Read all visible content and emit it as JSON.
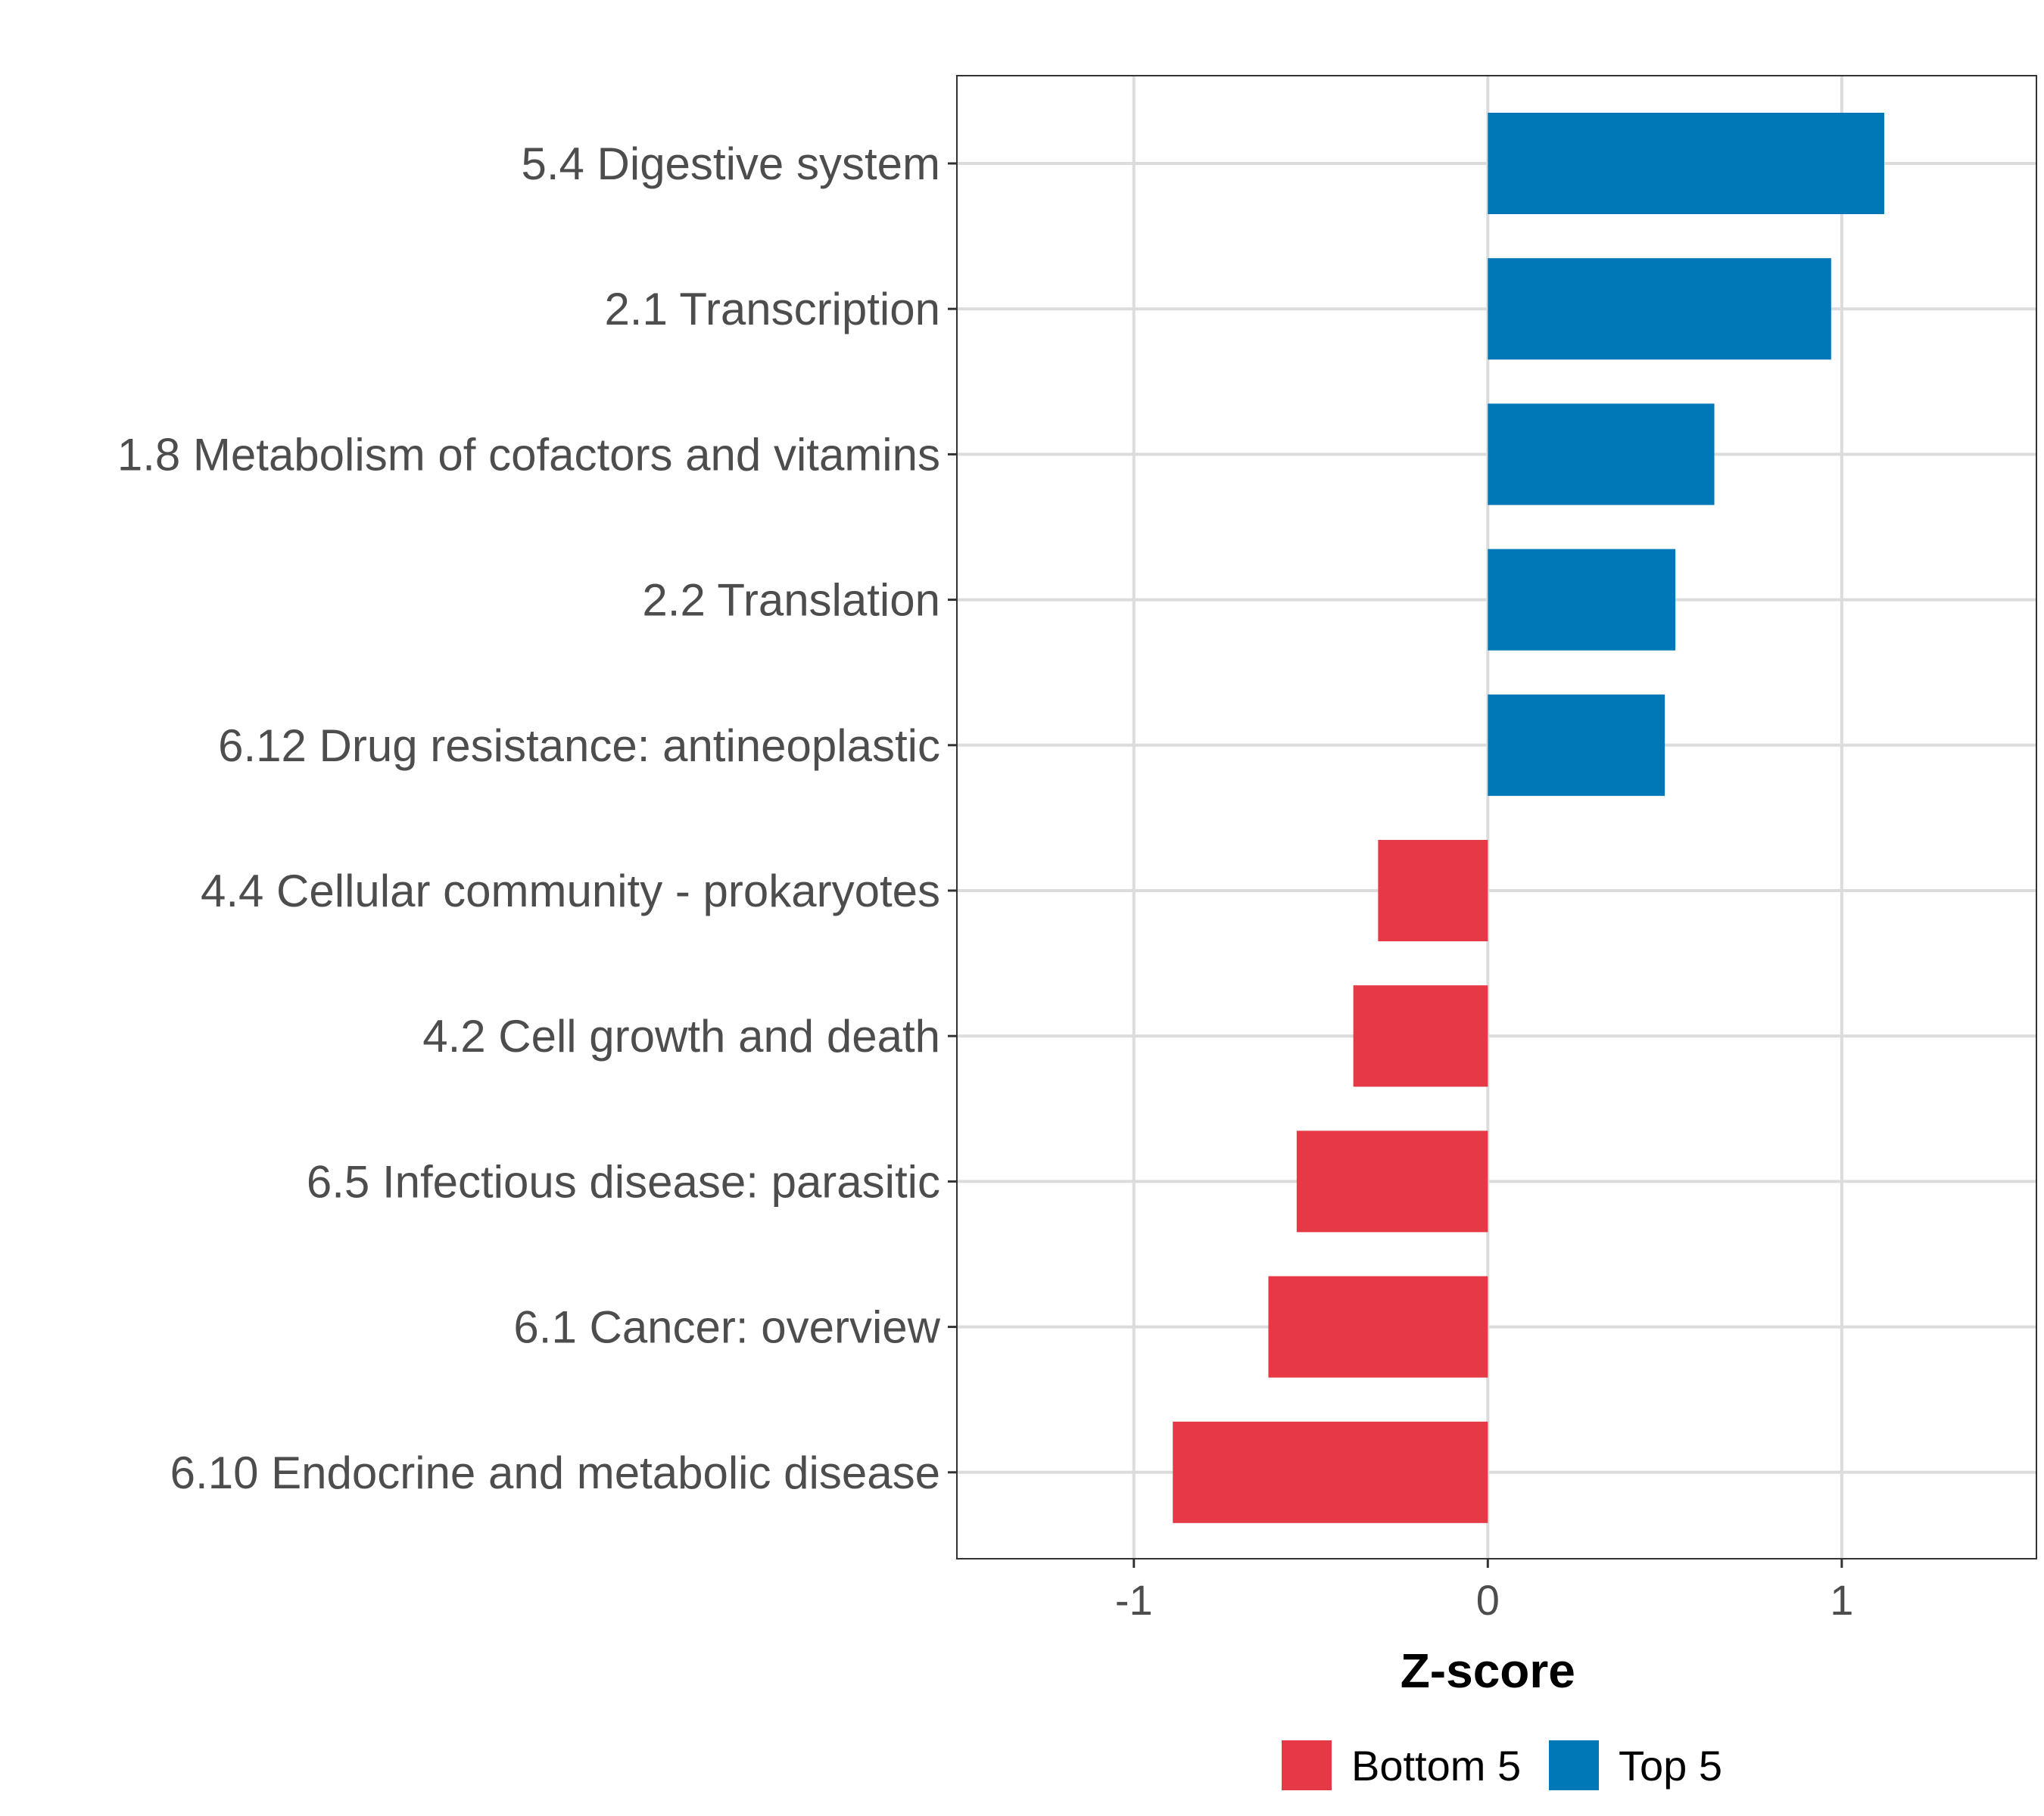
{
  "chart_data": {
    "type": "bar",
    "orientation": "horizontal",
    "title": "",
    "xlabel": "Z-score",
    "ylabel": "",
    "xlim": [
      -1.5,
      1.55
    ],
    "xticks": [
      -1,
      0,
      1
    ],
    "xtick_labels": [
      "-1",
      "0",
      "1"
    ],
    "grid": true,
    "legend_position": "bottom",
    "categories": [
      "5.4 Digestive system",
      "2.1 Transcription",
      "1.8 Metabolism of cofactors and vitamins",
      "2.2 Translation",
      "6.12 Drug resistance: antineoplastic",
      "4.4 Cellular community - prokaryotes",
      "4.2 Cell growth and death",
      "6.5 Infectious disease: parasitic",
      "6.1 Cancer: overview",
      "6.10 Endocrine and metabolic disease"
    ],
    "values": [
      1.12,
      0.97,
      0.64,
      0.53,
      0.5,
      -0.31,
      -0.38,
      -0.54,
      -0.62,
      -0.89
    ],
    "groups": [
      "Top 5",
      "Top 5",
      "Top 5",
      "Top 5",
      "Top 5",
      "Bottom 5",
      "Bottom 5",
      "Bottom 5",
      "Bottom 5",
      "Bottom 5"
    ],
    "legend": [
      {
        "name": "Bottom 5",
        "color": "#e63946"
      },
      {
        "name": "Top 5",
        "color": "#0077b6"
      }
    ]
  }
}
